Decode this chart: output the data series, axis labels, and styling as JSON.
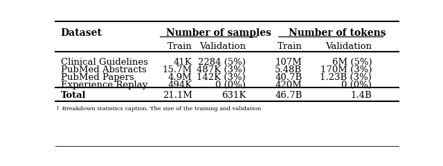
{
  "rows": [
    [
      "Clinical Guidelines",
      "41K",
      "2284 (5%)",
      "107M",
      "6M (5%)"
    ],
    [
      "PubMed Abstracts",
      "15.7M",
      "487K (3%)",
      "5.48B",
      "170M (3%)"
    ],
    [
      "PubMed Papers",
      "4.9M",
      "142K (3%)",
      "40.7B",
      "1.23B (3%)"
    ],
    [
      "Experience Replay",
      "494K",
      "0 (0%)",
      "420M",
      "0 (0%)"
    ]
  ],
  "total_row": [
    "Total",
    "21.1M",
    "631K",
    "46.7B",
    "1.4B"
  ],
  "bg_color": "#ffffff",
  "font_size": 9.5,
  "caption": "Breakdown statistics caption. The size of the training and validation"
}
